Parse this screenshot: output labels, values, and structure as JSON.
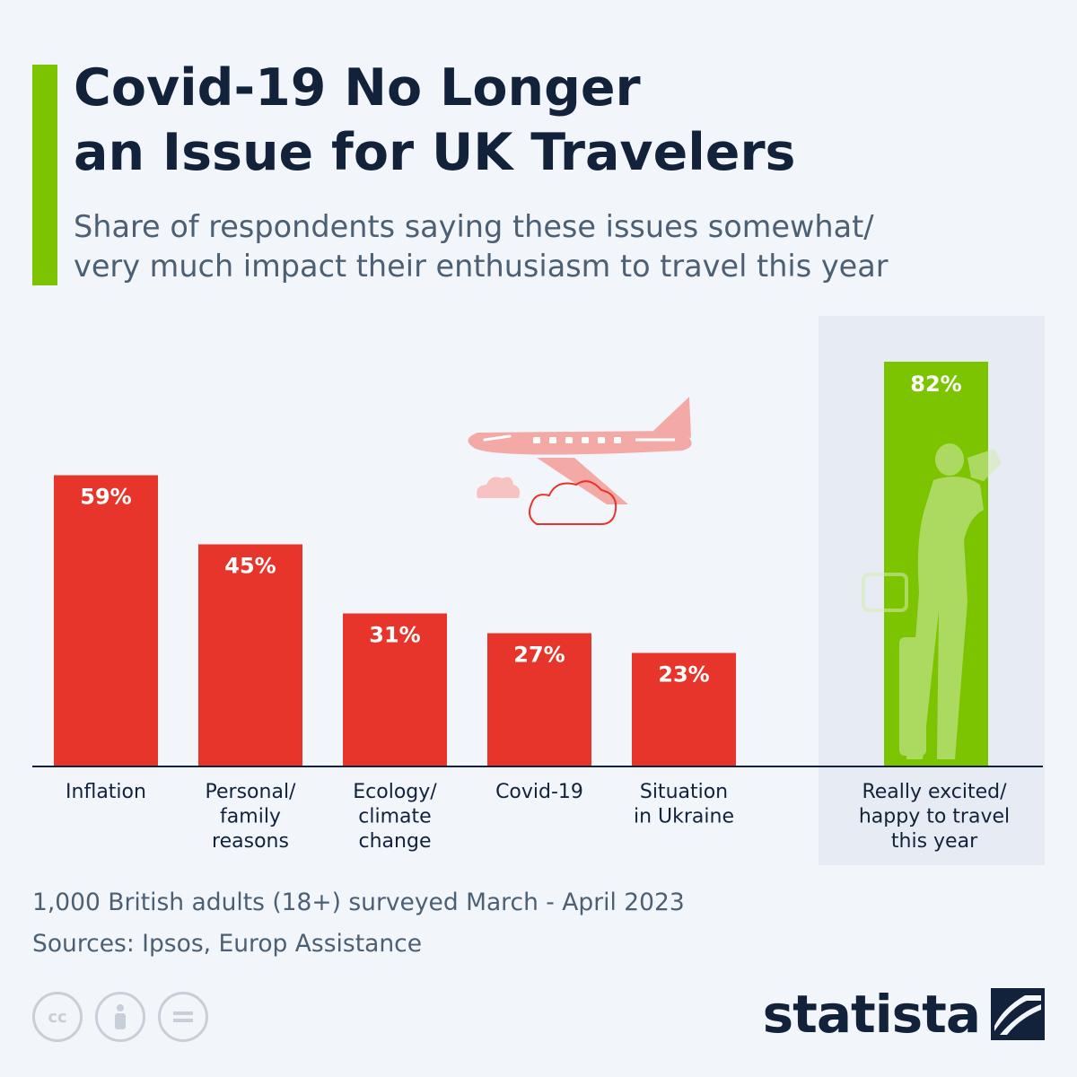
{
  "header": {
    "title_lines": [
      "Covid-19 No Longer",
      "an Issue for UK Travelers"
    ],
    "subtitle_lines": [
      "Share of respondents saying these issues somewhat/",
      "very much impact their enthusiasm to travel this year"
    ]
  },
  "chart_data": {
    "type": "bar",
    "title": "Covid-19 No Longer an Issue for UK Travelers",
    "subtitle": "Share of respondents saying these issues somewhat/very much impact their enthusiasm to travel this year",
    "unit": "%",
    "ylim": [
      0,
      100
    ],
    "grid": false,
    "categories": [
      [
        "Inflation"
      ],
      [
        "Personal/",
        "family",
        "reasons"
      ],
      [
        "Ecology/",
        "climate",
        "change"
      ],
      [
        "Covid-19"
      ],
      [
        "Situation",
        "in Ukraine"
      ]
    ],
    "values": [
      59,
      45,
      31,
      27,
      23
    ],
    "value_labels": [
      "59%",
      "45%",
      "31%",
      "27%",
      "23%"
    ],
    "highlight": {
      "category": [
        "Really excited/",
        "happy to travel",
        "this year"
      ],
      "value": 82,
      "value_label": "82%"
    }
  },
  "colors": {
    "accent": "#7dc400",
    "bar": "#e8352b",
    "highlight_bar": "#7dc400",
    "highlight_panel": "#e7ebf3",
    "title": "#13223b",
    "text": "#4d5f73"
  },
  "footer": {
    "survey_note": "1,000 British adults (18+) surveyed March - April 2023",
    "sources": "Sources: Ipsos, Europ Assistance",
    "brand": "statista",
    "license_icons": [
      "cc-icon",
      "attribution-icon",
      "no-derivatives-icon"
    ]
  }
}
